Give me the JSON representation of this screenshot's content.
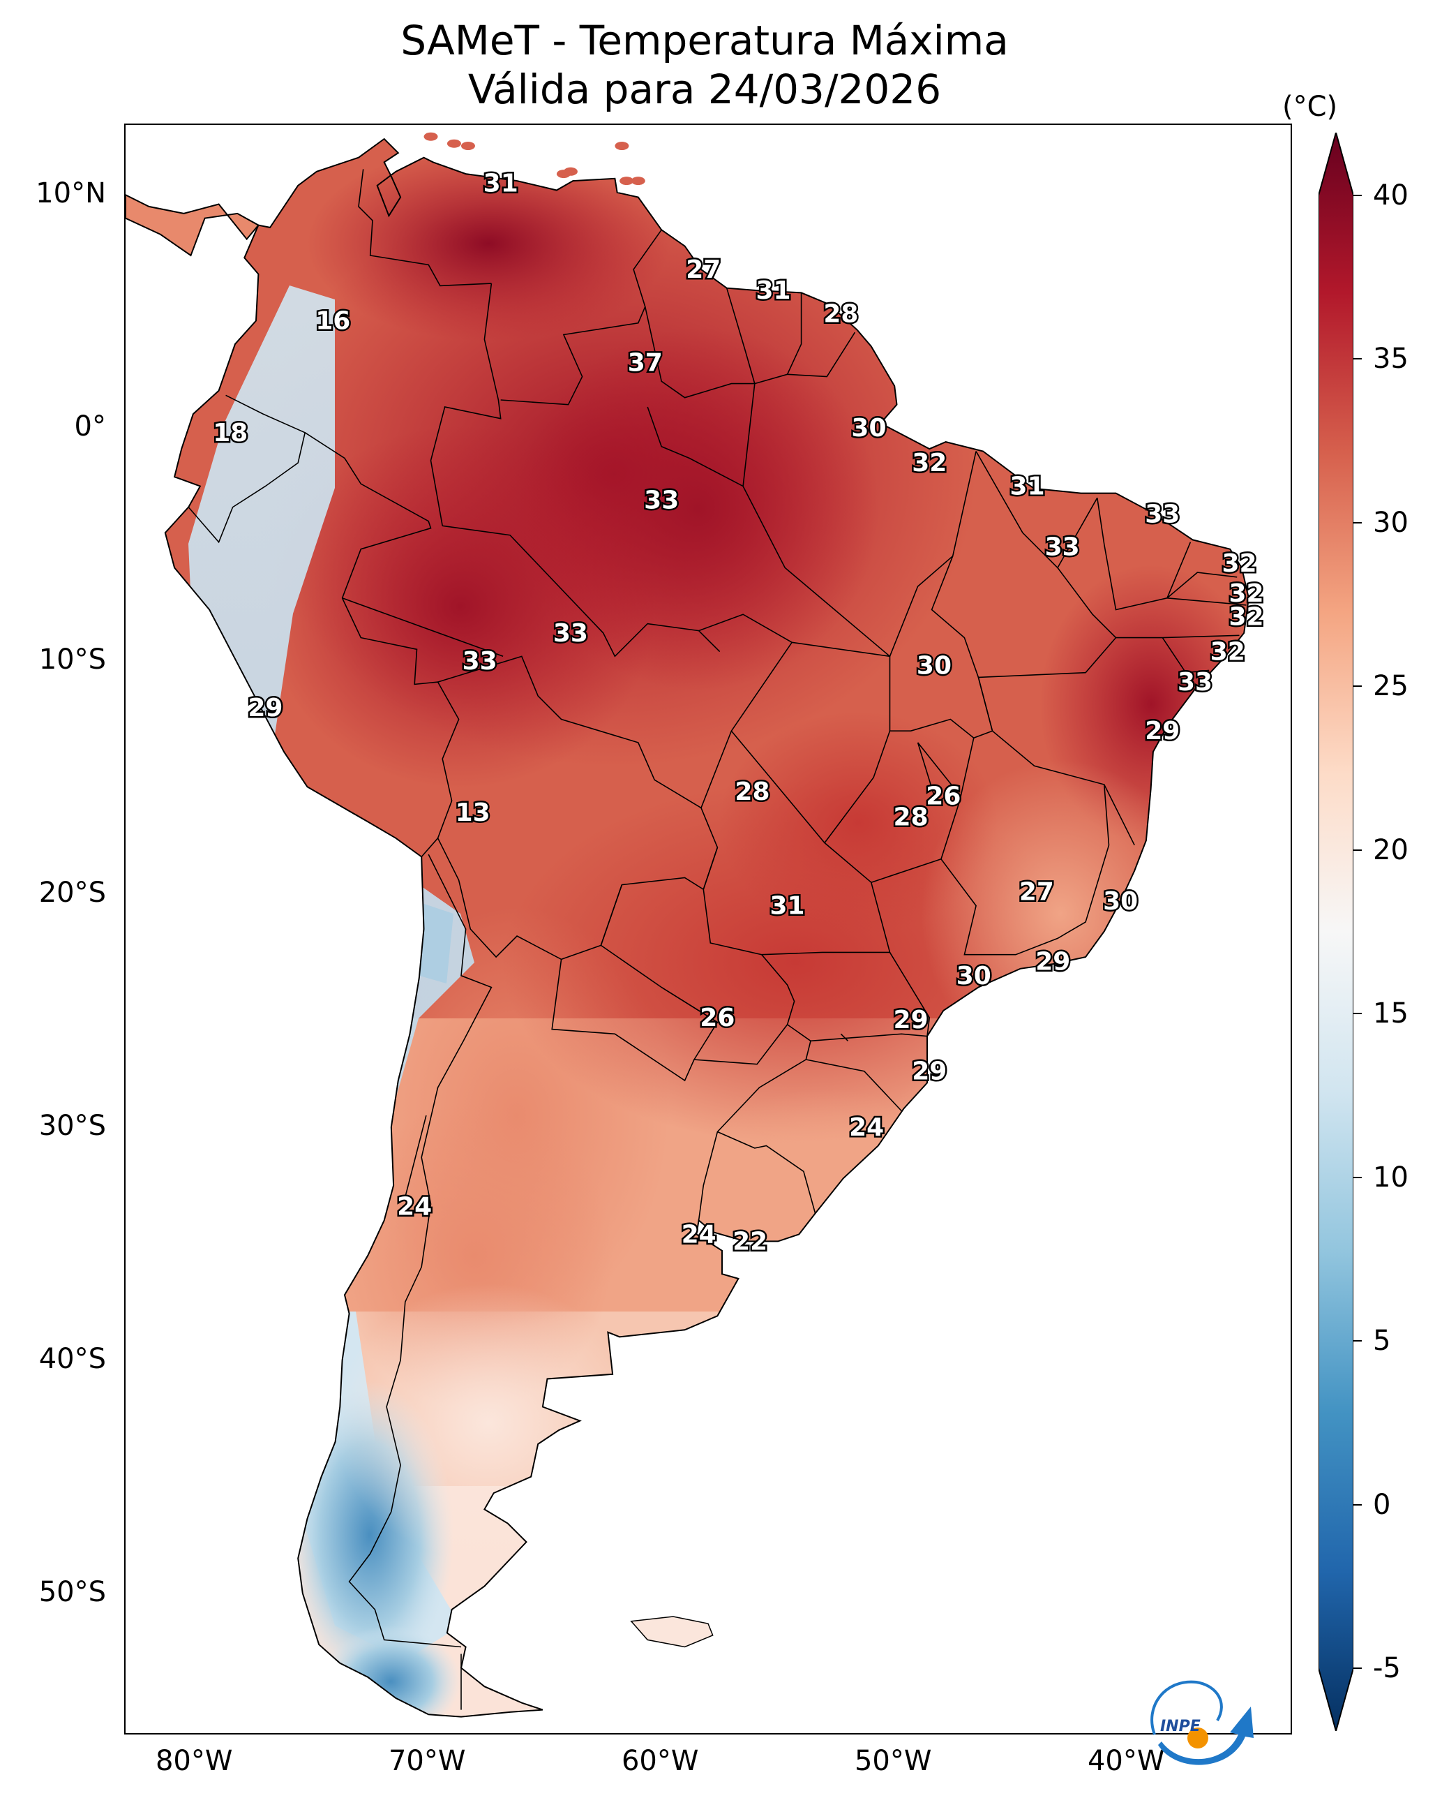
{
  "title": {
    "line1": "SAMeT - Temperatura Máxima",
    "line2": "Válida para 24/03/2026"
  },
  "axes": {
    "lat_labels": [
      "10°N",
      "0°",
      "10°S",
      "20°S",
      "30°S",
      "40°S",
      "50°S"
    ],
    "lon_labels": [
      "80°W",
      "70°W",
      "60°W",
      "50°W",
      "40°W"
    ]
  },
  "colorbar": {
    "unit": "(°C)",
    "min": -5,
    "max": 40,
    "ticks": [
      "40",
      "35",
      "30",
      "25",
      "20",
      "15",
      "10",
      "5",
      "0",
      "-5"
    ],
    "colors": [
      "#67001f",
      "#b2182b",
      "#d6604d",
      "#f4a582",
      "#fddbc7",
      "#f7f7f7",
      "#d1e5f0",
      "#92c5de",
      "#4393c3",
      "#2166ac",
      "#053061"
    ]
  },
  "city_values": [
    {
      "value": "31",
      "lon": -66.9,
      "lat": 10.5
    },
    {
      "value": "27",
      "lon": -58.2,
      "lat": 6.8
    },
    {
      "value": "31",
      "lon": -55.2,
      "lat": 5.9
    },
    {
      "value": "28",
      "lon": -52.3,
      "lat": 4.9
    },
    {
      "value": "16",
      "lon": -74.1,
      "lat": 4.6
    },
    {
      "value": "37",
      "lon": -60.7,
      "lat": 2.8
    },
    {
      "value": "18",
      "lon": -78.5,
      "lat": -0.2
    },
    {
      "value": "30",
      "lon": -51.1,
      "lat": 0.0
    },
    {
      "value": "32",
      "lon": -48.5,
      "lat": -1.5
    },
    {
      "value": "31",
      "lon": -44.3,
      "lat": -2.5
    },
    {
      "value": "33",
      "lon": -60.0,
      "lat": -3.1
    },
    {
      "value": "33",
      "lon": -38.5,
      "lat": -3.7
    },
    {
      "value": "33",
      "lon": -42.8,
      "lat": -5.1
    },
    {
      "value": "32",
      "lon": -35.2,
      "lat": -5.8
    },
    {
      "value": "32",
      "lon": -34.9,
      "lat": -7.1
    },
    {
      "value": "32",
      "lon": -34.9,
      "lat": -8.1
    },
    {
      "value": "33",
      "lon": -63.9,
      "lat": -8.8
    },
    {
      "value": "32",
      "lon": -35.7,
      "lat": -9.6
    },
    {
      "value": "30",
      "lon": -48.3,
      "lat": -10.2
    },
    {
      "value": "33",
      "lon": -67.8,
      "lat": -10.0
    },
    {
      "value": "33",
      "lon": -37.1,
      "lat": -10.9
    },
    {
      "value": "29",
      "lon": -77.0,
      "lat": -12.0
    },
    {
      "value": "29",
      "lon": -38.5,
      "lat": -13.0
    },
    {
      "value": "28",
      "lon": -56.1,
      "lat": -15.6
    },
    {
      "value": "26",
      "lon": -47.9,
      "lat": -15.8
    },
    {
      "value": "13",
      "lon": -68.1,
      "lat": -16.5
    },
    {
      "value": "28",
      "lon": -49.3,
      "lat": -16.7
    },
    {
      "value": "27",
      "lon": -43.9,
      "lat": -19.9
    },
    {
      "value": "30",
      "lon": -40.3,
      "lat": -20.3
    },
    {
      "value": "31",
      "lon": -54.6,
      "lat": -20.5
    },
    {
      "value": "29",
      "lon": -43.2,
      "lat": -22.9
    },
    {
      "value": "30",
      "lon": -46.6,
      "lat": -23.5
    },
    {
      "value": "26",
      "lon": -57.6,
      "lat": -25.3
    },
    {
      "value": "29",
      "lon": -49.3,
      "lat": -25.4
    },
    {
      "value": "29",
      "lon": -48.5,
      "lat": -27.6
    },
    {
      "value": "24",
      "lon": -51.2,
      "lat": -30.0
    },
    {
      "value": "24",
      "lon": -70.6,
      "lat": -33.4
    },
    {
      "value": "24",
      "lon": -58.4,
      "lat": -34.6
    },
    {
      "value": "22",
      "lon": -56.2,
      "lat": -34.9
    }
  ],
  "logo": {
    "text": "INPE"
  }
}
